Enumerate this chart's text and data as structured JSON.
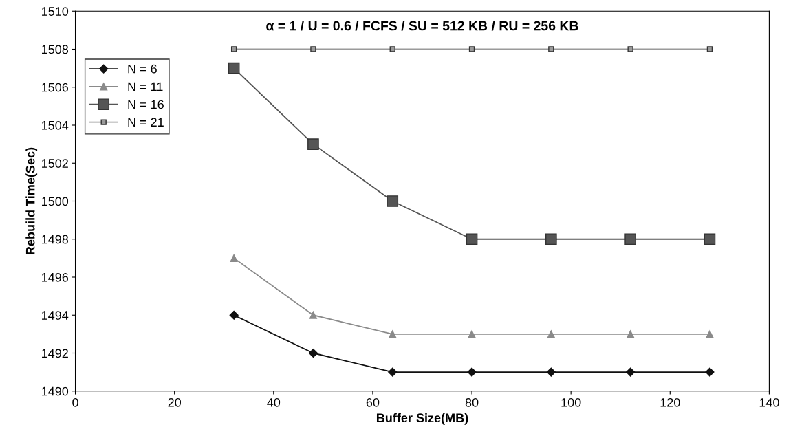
{
  "chart_data": {
    "type": "line",
    "title": "α = 1 / U = 0.6 / FCFS / SU = 512 KB / RU = 256 KB",
    "xlabel": "Buffer Size(MB)",
    "ylabel": "Rebuild Time(Sec)",
    "x": [
      32,
      48,
      64,
      80,
      96,
      112,
      128
    ],
    "series": [
      {
        "name": "N = 6",
        "color": "#111111",
        "marker": "diamond",
        "values": [
          1494,
          1492,
          1491,
          1491,
          1491,
          1491,
          1491
        ]
      },
      {
        "name": "N = 11",
        "color": "#8a8a8a",
        "marker": "triangle",
        "values": [
          1497,
          1494,
          1493,
          1493,
          1493,
          1493,
          1493
        ]
      },
      {
        "name": "N = 16",
        "color": "#555555",
        "marker": "square",
        "values": [
          1507,
          1503,
          1500,
          1498,
          1498,
          1498,
          1498
        ]
      },
      {
        "name": "N = 21",
        "color": "#9a9a9a",
        "marker": "square",
        "values": [
          1508,
          1508,
          1508,
          1508,
          1508,
          1508,
          1508
        ]
      }
    ],
    "xlim": [
      0,
      140
    ],
    "xticks": [
      0,
      20,
      40,
      60,
      80,
      100,
      120,
      140
    ],
    "ylim": [
      1490,
      1510
    ],
    "yticks": [
      1490,
      1492,
      1494,
      1496,
      1498,
      1500,
      1502,
      1504,
      1506,
      1508,
      1510
    ],
    "grid": false,
    "legend": "upper left",
    "line_style": "solid"
  }
}
